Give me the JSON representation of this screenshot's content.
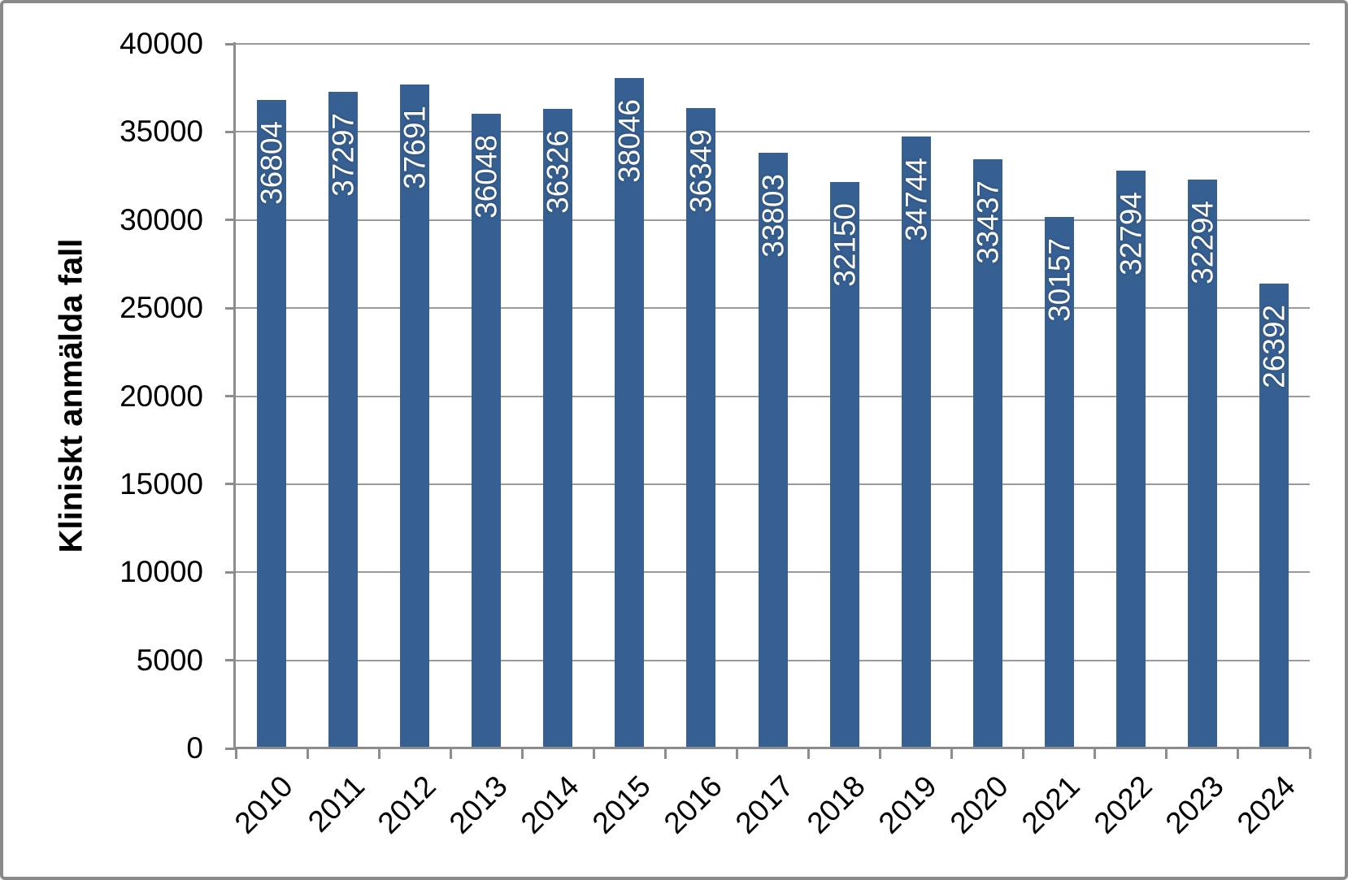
{
  "chart_data": {
    "type": "bar",
    "title": "",
    "xlabel": "",
    "ylabel": "Kliniskt anmälda fall",
    "categories": [
      "2010",
      "2011",
      "2012",
      "2013",
      "2014",
      "2015",
      "2016",
      "2017",
      "2018",
      "2019",
      "2020",
      "2021",
      "2022",
      "2023",
      "2024"
    ],
    "values": [
      36804,
      37297,
      37691,
      36048,
      36326,
      38046,
      36349,
      33803,
      32150,
      34744,
      33437,
      30157,
      32794,
      32294,
      26392
    ],
    "ylim": [
      0,
      40000
    ],
    "ytick_step": 5000,
    "yticks": [
      0,
      5000,
      10000,
      15000,
      20000,
      25000,
      30000,
      35000,
      40000
    ],
    "grid": true,
    "legend": false,
    "bar_color": "#366092",
    "bar_label_color": "#ffffff",
    "grid_color": "#9a9a9a",
    "axis_color": "#8c8c8c",
    "text_color": "#000000"
  }
}
